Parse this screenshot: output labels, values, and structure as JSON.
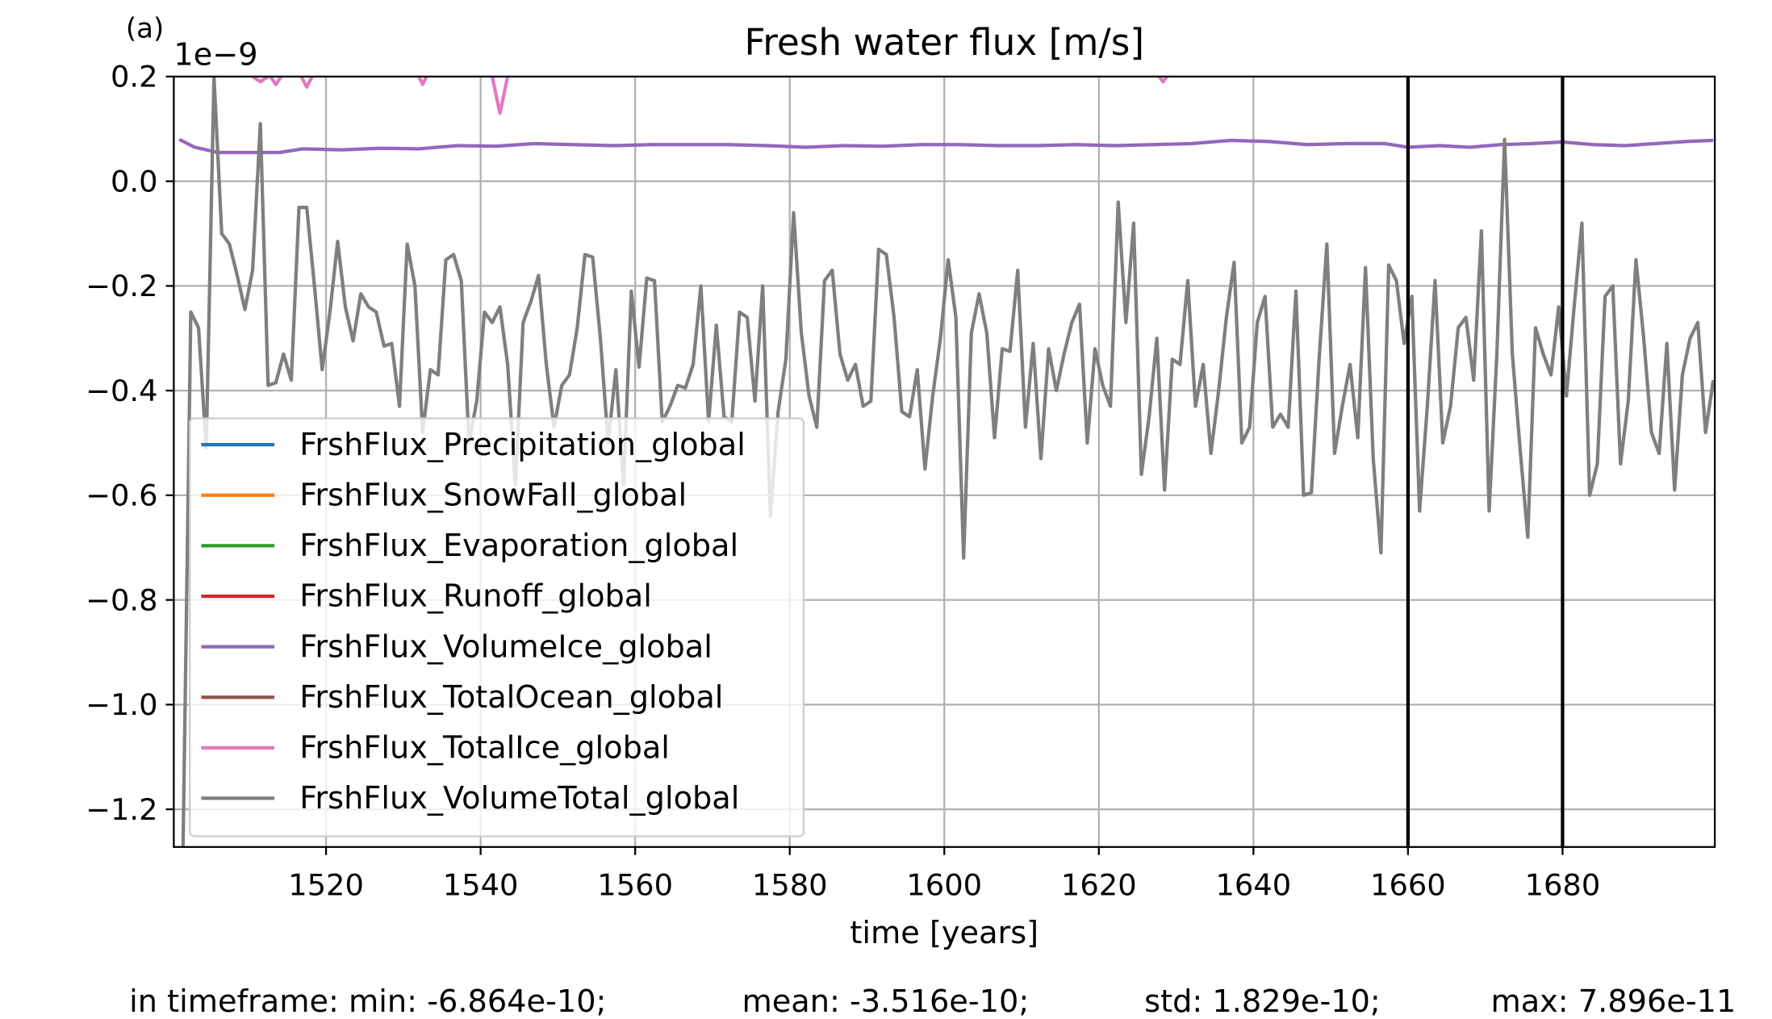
{
  "chart_data": {
    "type": "line",
    "title": "Fresh water flux [m/s]",
    "panel_label": "(a)",
    "offset_label": "1e−9",
    "xlabel": "time [years]",
    "annotations": [
      "in timeframe: min: -6.864e-10;",
      "mean: -3.516e-10;",
      "std: 1.829e-10;",
      "max: 7.896e-11"
    ],
    "xlim": [
      1500.3,
      1699.7
    ],
    "xticks": [
      1520,
      1540,
      1560,
      1580,
      1600,
      1620,
      1640,
      1660,
      1680
    ],
    "ylim": [
      -1.272,
      0.2
    ],
    "yticks": [
      {
        "value": -1.2,
        "label": "−1.2"
      },
      {
        "value": -1.0,
        "label": "−1.0"
      },
      {
        "value": -0.8,
        "label": "−0.8"
      },
      {
        "value": -0.6,
        "label": "−0.6"
      },
      {
        "value": -0.4,
        "label": "−0.4"
      },
      {
        "value": -0.2,
        "label": "−0.2"
      },
      {
        "value": 0,
        "label": "0.0"
      },
      0.2
    ],
    "grid": true,
    "vlines": [
      1660,
      1680
    ],
    "legend": "lower left",
    "x": [
      1501.5,
      1502.5,
      1503.5,
      1504.5,
      1505.5,
      1506.5,
      1507.5,
      1508.5,
      1509.5,
      1510.5,
      1511.5,
      1512.5,
      1513.5,
      1514.5,
      1515.5,
      1516.5,
      1517.5,
      1518.5,
      1519.5,
      1520.5,
      1521.5,
      1522.5,
      1523.5,
      1524.5,
      1525.5,
      1526.5,
      1527.5,
      1528.5,
      1529.5,
      1530.5,
      1531.5,
      1532.5,
      1533.5,
      1534.5,
      1535.5,
      1536.5,
      1537.5,
      1538.5,
      1539.5,
      1540.5,
      1541.5,
      1542.5,
      1543.5,
      1544.5,
      1545.5,
      1546.5,
      1547.5,
      1548.5,
      1549.5,
      1550.5,
      1551.5,
      1552.5,
      1553.5,
      1554.5,
      1555.5,
      1556.5,
      1557.5,
      1558.5,
      1559.5,
      1560.5,
      1561.5,
      1562.5,
      1563.5,
      1564.5,
      1565.5,
      1566.5,
      1567.5,
      1568.5,
      1569.5,
      1570.5,
      1571.5,
      1572.5,
      1573.5,
      1574.5,
      1575.5,
      1576.5,
      1577.5,
      1578.5,
      1579.5,
      1580.5,
      1581.5,
      1582.5,
      1583.5,
      1584.5,
      1585.5,
      1586.5,
      1587.5,
      1588.5,
      1589.5,
      1590.5,
      1591.5,
      1592.5,
      1593.5,
      1594.5,
      1595.5,
      1596.5,
      1597.5,
      1598.5,
      1599.5,
      1600.5,
      1601.5,
      1602.5,
      1603.5,
      1604.5,
      1605.5,
      1606.5,
      1607.5,
      1608.5,
      1609.5,
      1610.5,
      1611.5,
      1612.5,
      1613.5,
      1614.5,
      1615.5,
      1616.5,
      1617.5,
      1618.5,
      1619.5,
      1620.5,
      1621.5,
      1622.5,
      1623.5,
      1624.5,
      1625.5,
      1626.5,
      1627.5,
      1628.5,
      1629.5,
      1630.5,
      1631.5,
      1632.5,
      1633.5,
      1634.5,
      1635.5,
      1636.5,
      1637.5,
      1638.5,
      1639.5,
      1640.5,
      1641.5,
      1642.5,
      1643.5,
      1644.5,
      1645.5,
      1646.5,
      1647.5,
      1648.5,
      1649.5,
      1650.5,
      1651.5,
      1652.5,
      1653.5,
      1654.5,
      1655.5,
      1656.5,
      1657.5,
      1658.5,
      1659.5,
      1660.5,
      1661.5,
      1662.5,
      1663.5,
      1664.5,
      1665.5,
      1666.5,
      1667.5,
      1668.5,
      1669.5,
      1670.5,
      1671.5,
      1672.5,
      1673.5,
      1674.5,
      1675.5,
      1676.5,
      1677.5,
      1678.5,
      1679.5,
      1680.5,
      1681.5,
      1682.5,
      1683.5,
      1684.5,
      1685.5,
      1686.5,
      1687.5,
      1688.5,
      1689.5,
      1690.5,
      1691.5,
      1692.5,
      1693.5,
      1694.5,
      1695.5,
      1696.5,
      1697.5,
      1698.5,
      1699.5
    ],
    "series": [
      {
        "name": "FrshFlux_Precipitation_global",
        "color": "#1f77b4"
      },
      {
        "name": "FrshFlux_SnowFall_global",
        "color": "#ff7f0e"
      },
      {
        "name": "FrshFlux_Evaporation_global",
        "color": "#2ca02c"
      },
      {
        "name": "FrshFlux_Runoff_global",
        "color": "#d62728"
      },
      {
        "name": "FrshFlux_VolumeIce_global",
        "color": "#9467bd",
        "x": [
          1501,
          1503,
          1506,
          1510,
          1514,
          1517,
          1522,
          1527,
          1532,
          1537,
          1542,
          1547,
          1552,
          1557,
          1562,
          1567,
          1572,
          1577,
          1582,
          1587,
          1592,
          1597,
          1602,
          1607,
          1612,
          1617,
          1622,
          1627,
          1632,
          1637,
          1642,
          1647,
          1652,
          1657,
          1660,
          1664,
          1668,
          1672,
          1676,
          1680,
          1684,
          1688,
          1692,
          1696,
          1699.5
        ],
        "values": [
          0.08,
          0.065,
          0.055,
          0.055,
          0.055,
          0.062,
          0.06,
          0.063,
          0.062,
          0.068,
          0.067,
          0.072,
          0.07,
          0.068,
          0.07,
          0.07,
          0.07,
          0.068,
          0.065,
          0.068,
          0.067,
          0.07,
          0.07,
          0.068,
          0.068,
          0.07,
          0.068,
          0.07,
          0.072,
          0.078,
          0.076,
          0.07,
          0.072,
          0.072,
          0.065,
          0.068,
          0.065,
          0.07,
          0.072,
          0.075,
          0.07,
          0.068,
          0.072,
          0.076,
          0.078
        ]
      },
      {
        "name": "FrshFlux_TotalOcean_global",
        "color": "#8c564b"
      },
      {
        "name": "FrshFlux_TotalIce_global",
        "color": "#e377c2",
        "x": [
          1510.5,
          1511.5,
          1512.5,
          null,
          1512.8,
          1513.5,
          1514.2,
          null,
          1516.8,
          1517.5,
          1518.2,
          null,
          1532,
          1532.5,
          1533,
          null,
          1541.5,
          1542.5,
          1543.5,
          null,
          1627.8,
          1628.3,
          1628.8
        ],
        "values": [
          0.2,
          0.19,
          0.2,
          null,
          0.2,
          0.185,
          0.2,
          null,
          0.2,
          0.18,
          0.2,
          null,
          0.2,
          0.185,
          0.2,
          null,
          0.2,
          0.13,
          0.2,
          null,
          0.2,
          0.19,
          0.2
        ]
      },
      {
        "name": "FrshFlux_VolumeTotal_global",
        "color": "#7f7f7f",
        "values": [
          -1.27,
          -0.25,
          -0.28,
          -0.51,
          0.2,
          -0.1,
          -0.12,
          -0.18,
          -0.245,
          -0.17,
          0.11,
          -0.39,
          -0.385,
          -0.33,
          -0.38,
          -0.05,
          -0.05,
          -0.2,
          -0.36,
          -0.25,
          -0.115,
          -0.24,
          -0.305,
          -0.215,
          -0.24,
          -0.25,
          -0.315,
          -0.31,
          -0.43,
          -0.12,
          -0.2,
          -0.48,
          -0.36,
          -0.37,
          -0.15,
          -0.14,
          -0.19,
          -0.5,
          -0.42,
          -0.25,
          -0.27,
          -0.24,
          -0.35,
          -0.58,
          -0.27,
          -0.23,
          -0.18,
          -0.35,
          -0.47,
          -0.39,
          -0.37,
          -0.28,
          -0.14,
          -0.145,
          -0.3,
          -0.5,
          -0.36,
          -0.58,
          -0.21,
          -0.355,
          -0.185,
          -0.19,
          -0.46,
          -0.43,
          -0.39,
          -0.395,
          -0.35,
          -0.2,
          -0.46,
          -0.275,
          -0.45,
          -0.46,
          -0.25,
          -0.26,
          -0.42,
          -0.2,
          -0.64,
          -0.44,
          -0.34,
          -0.06,
          -0.29,
          -0.41,
          -0.47,
          -0.19,
          -0.17,
          -0.33,
          -0.38,
          -0.35,
          -0.43,
          -0.42,
          -0.13,
          -0.14,
          -0.26,
          -0.44,
          -0.45,
          -0.36,
          -0.55,
          -0.41,
          -0.3,
          -0.15,
          -0.26,
          -0.72,
          -0.29,
          -0.215,
          -0.29,
          -0.49,
          -0.32,
          -0.325,
          -0.17,
          -0.47,
          -0.31,
          -0.53,
          -0.32,
          -0.4,
          -0.33,
          -0.27,
          -0.235,
          -0.5,
          -0.32,
          -0.39,
          -0.43,
          -0.04,
          -0.27,
          -0.08,
          -0.56,
          -0.45,
          -0.3,
          -0.59,
          -0.34,
          -0.35,
          -0.19,
          -0.43,
          -0.35,
          -0.52,
          -0.4,
          -0.26,
          -0.155,
          -0.5,
          -0.47,
          -0.27,
          -0.22,
          -0.47,
          -0.445,
          -0.47,
          -0.21,
          -0.6,
          -0.595,
          -0.34,
          -0.12,
          -0.52,
          -0.43,
          -0.35,
          -0.49,
          -0.165,
          -0.53,
          -0.71,
          -0.16,
          -0.19,
          -0.31,
          -0.22,
          -0.63,
          -0.43,
          -0.19,
          -0.5,
          -0.43,
          -0.28,
          -0.26,
          -0.38,
          -0.095,
          -0.63,
          -0.33,
          0.08,
          -0.33,
          -0.51,
          -0.68,
          -0.28,
          -0.33,
          -0.37,
          -0.24,
          -0.41,
          -0.24,
          -0.08,
          -0.6,
          -0.54,
          -0.22,
          -0.2,
          -0.54,
          -0.42,
          -0.15,
          -0.3,
          -0.48,
          -0.52,
          -0.31,
          -0.59,
          -0.37,
          -0.3,
          -0.27,
          -0.48,
          -0.38
        ]
      }
    ]
  }
}
